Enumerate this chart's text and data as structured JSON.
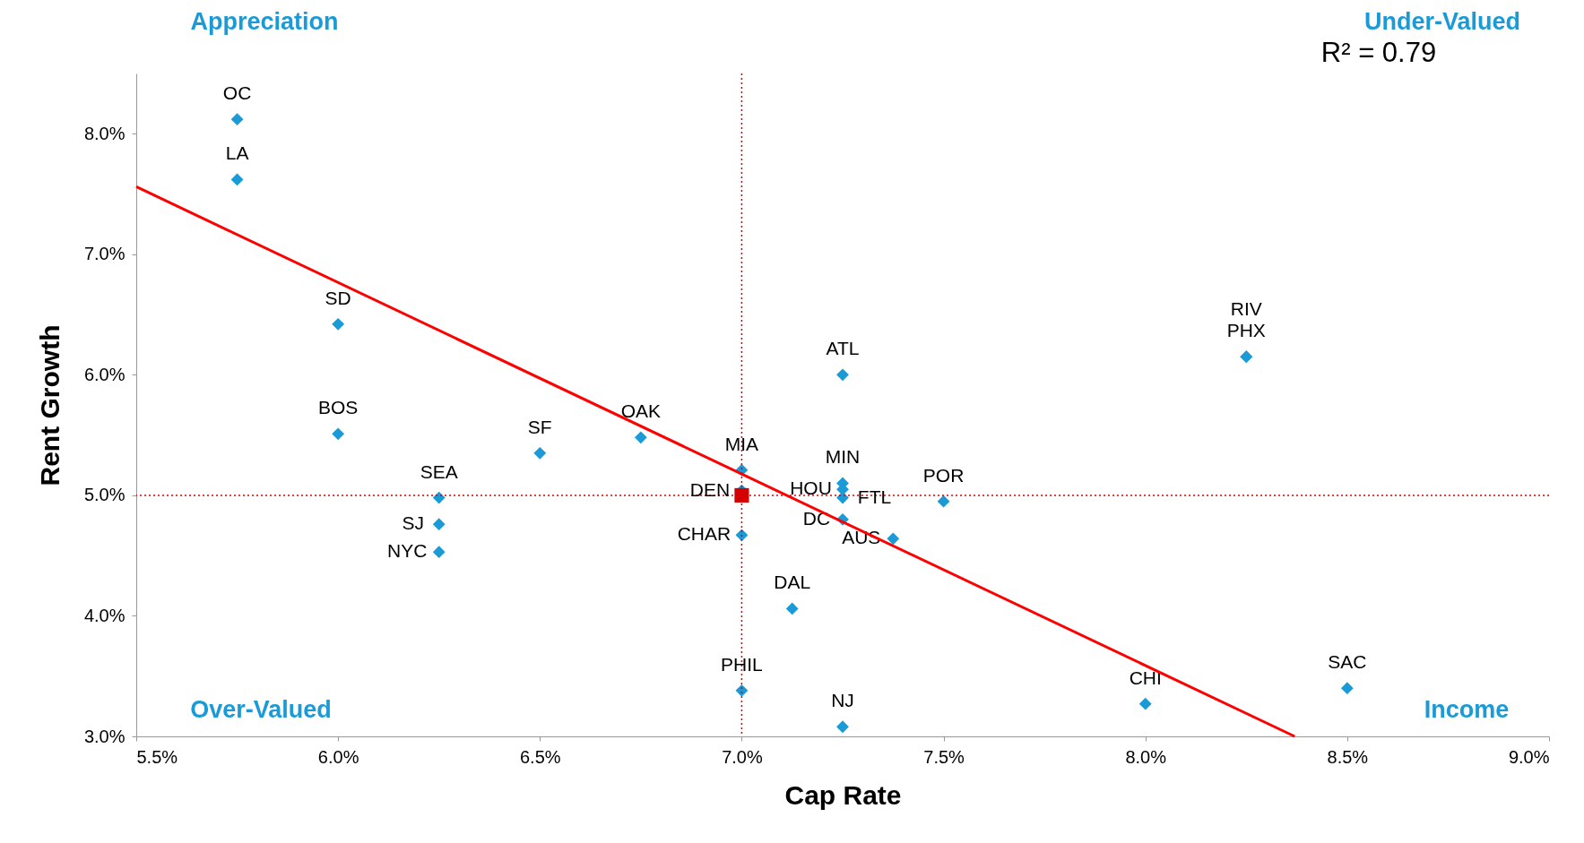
{
  "chart_data": {
    "type": "scatter",
    "xlabel": "Cap Rate",
    "ylabel": "Rent Growth",
    "xlim": [
      5.5,
      9.0
    ],
    "ylim": [
      3.0,
      8.5
    ],
    "xticks": [
      {
        "value": 5.5,
        "label": "5.5%"
      },
      {
        "value": 6.0,
        "label": "6.0%"
      },
      {
        "value": 6.5,
        "label": "6.5%"
      },
      {
        "value": 7.0,
        "label": "7.0%"
      },
      {
        "value": 7.5,
        "label": "7.5%"
      },
      {
        "value": 8.0,
        "label": "8.0%"
      },
      {
        "value": 8.5,
        "label": "8.5%"
      },
      {
        "value": 9.0,
        "label": "9.0%"
      }
    ],
    "yticks": [
      {
        "value": 3.0,
        "label": "3.0%"
      },
      {
        "value": 4.0,
        "label": "4.0%"
      },
      {
        "value": 5.0,
        "label": "5.0%"
      },
      {
        "value": 6.0,
        "label": "6.0%"
      },
      {
        "value": 7.0,
        "label": "7.0%"
      },
      {
        "value": 8.0,
        "label": "8.0%"
      }
    ],
    "grid": false,
    "series": [
      {
        "marker": "diamond",
        "color": "#1a9ad6",
        "x": [
          5.75,
          5.75,
          6.0,
          6.0,
          6.25,
          6.25,
          6.25,
          6.5,
          6.75,
          7.0,
          7.0,
          7.0,
          7.0,
          7.125,
          7.25,
          7.25,
          7.25,
          7.25,
          7.25,
          7.25,
          7.375,
          7.5,
          8.0,
          8.25,
          8.25,
          8.5
        ],
        "values": [
          8.12,
          7.62,
          6.42,
          5.51,
          4.98,
          4.76,
          4.53,
          5.35,
          5.48,
          5.21,
          5.04,
          4.67,
          3.38,
          4.06,
          6.0,
          5.1,
          5.05,
          4.98,
          4.8,
          3.08,
          4.64,
          4.95,
          3.27,
          6.15,
          6.15,
          3.4
        ],
        "value_labels": [
          "OC",
          "LA",
          "SD",
          "BOS",
          "SEA",
          "SJ",
          "NYC",
          "SF",
          "OAK",
          "MIA",
          "DEN",
          "CHAR",
          "PHIL",
          "DAL",
          "ATL",
          "MIN",
          "HOU",
          "FTL",
          "DC",
          "NJ",
          "AUS",
          "POR",
          "CHI",
          "PHX",
          "RIV",
          "SAC"
        ]
      },
      {
        "marker": "square",
        "color": "#d40000",
        "x": [
          7.0
        ],
        "values": [
          5.0
        ]
      },
      {
        "type": "line",
        "color": "#ff0000",
        "line_style": "solid",
        "x": [
          5.5,
          8.37
        ],
        "values": [
          7.56,
          3.0
        ]
      }
    ],
    "ref_lines": [
      {
        "axis": "x",
        "value": 7.0,
        "color": "#e00000",
        "line_style": "dotted"
      },
      {
        "axis": "y",
        "value": 5.0,
        "color": "#e00000",
        "line_style": "dotted"
      }
    ],
    "annotations": [
      "Appreciation",
      "Under-Valued",
      "Over-Valued",
      "Income",
      "R² = 0.79"
    ]
  }
}
